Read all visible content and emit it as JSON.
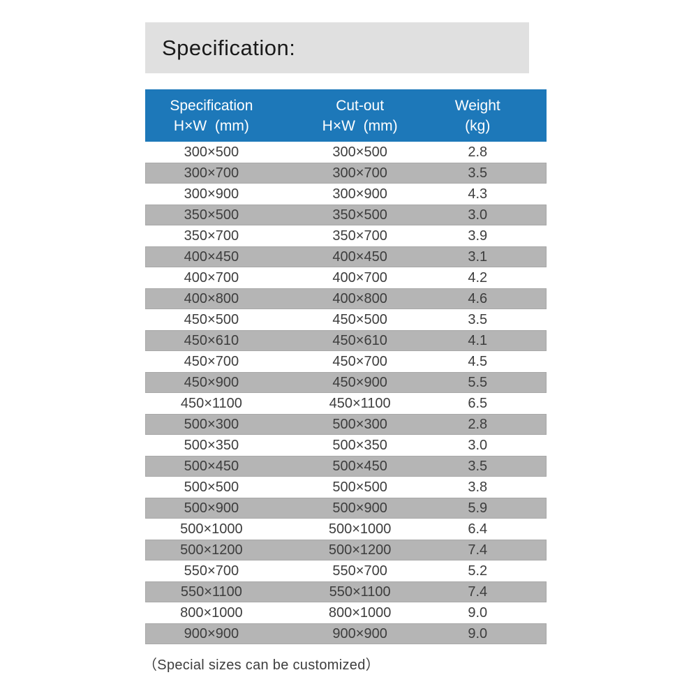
{
  "page": {
    "title": "Specification:",
    "footnote": "（Special sizes can be customized）"
  },
  "colors": {
    "title_bg": "#e0e0e0",
    "header_bg": "#1d78b9",
    "row_alt_bg": "#b5b5b5"
  },
  "table": {
    "columns": [
      {
        "line1": "Specification",
        "line2": "H×W  (mm)"
      },
      {
        "line1": "Cut-out",
        "line2": "H×W  (mm)"
      },
      {
        "line1": "Weight",
        "line2": "(kg)"
      }
    ],
    "rows": [
      {
        "spec": "300×500",
        "cutout": "300×500",
        "weight": "2.8"
      },
      {
        "spec": "300×700",
        "cutout": "300×700",
        "weight": "3.5"
      },
      {
        "spec": "300×900",
        "cutout": "300×900",
        "weight": "4.3"
      },
      {
        "spec": "350×500",
        "cutout": "350×500",
        "weight": "3.0"
      },
      {
        "spec": "350×700",
        "cutout": "350×700",
        "weight": "3.9"
      },
      {
        "spec": "400×450",
        "cutout": "400×450",
        "weight": "3.1"
      },
      {
        "spec": "400×700",
        "cutout": "400×700",
        "weight": "4.2"
      },
      {
        "spec": "400×800",
        "cutout": "400×800",
        "weight": "4.6"
      },
      {
        "spec": "450×500",
        "cutout": "450×500",
        "weight": "3.5"
      },
      {
        "spec": "450×610",
        "cutout": "450×610",
        "weight": "4.1"
      },
      {
        "spec": "450×700",
        "cutout": "450×700",
        "weight": "4.5"
      },
      {
        "spec": "450×900",
        "cutout": "450×900",
        "weight": "5.5"
      },
      {
        "spec": "450×1100",
        "cutout": "450×1100",
        "weight": "6.5"
      },
      {
        "spec": "500×300",
        "cutout": "500×300",
        "weight": "2.8"
      },
      {
        "spec": "500×350",
        "cutout": "500×350",
        "weight": "3.0"
      },
      {
        "spec": "500×450",
        "cutout": "500×450",
        "weight": "3.5"
      },
      {
        "spec": "500×500",
        "cutout": "500×500",
        "weight": "3.8"
      },
      {
        "spec": "500×900",
        "cutout": "500×900",
        "weight": "5.9"
      },
      {
        "spec": "500×1000",
        "cutout": "500×1000",
        "weight": "6.4"
      },
      {
        "spec": "500×1200",
        "cutout": "500×1200",
        "weight": "7.4"
      },
      {
        "spec": "550×700",
        "cutout": "550×700",
        "weight": "5.2"
      },
      {
        "spec": "550×1100",
        "cutout": "550×1100",
        "weight": "7.4"
      },
      {
        "spec": "800×1000",
        "cutout": "800×1000",
        "weight": "9.0"
      },
      {
        "spec": "900×900",
        "cutout": "900×900",
        "weight": "9.0"
      }
    ]
  }
}
